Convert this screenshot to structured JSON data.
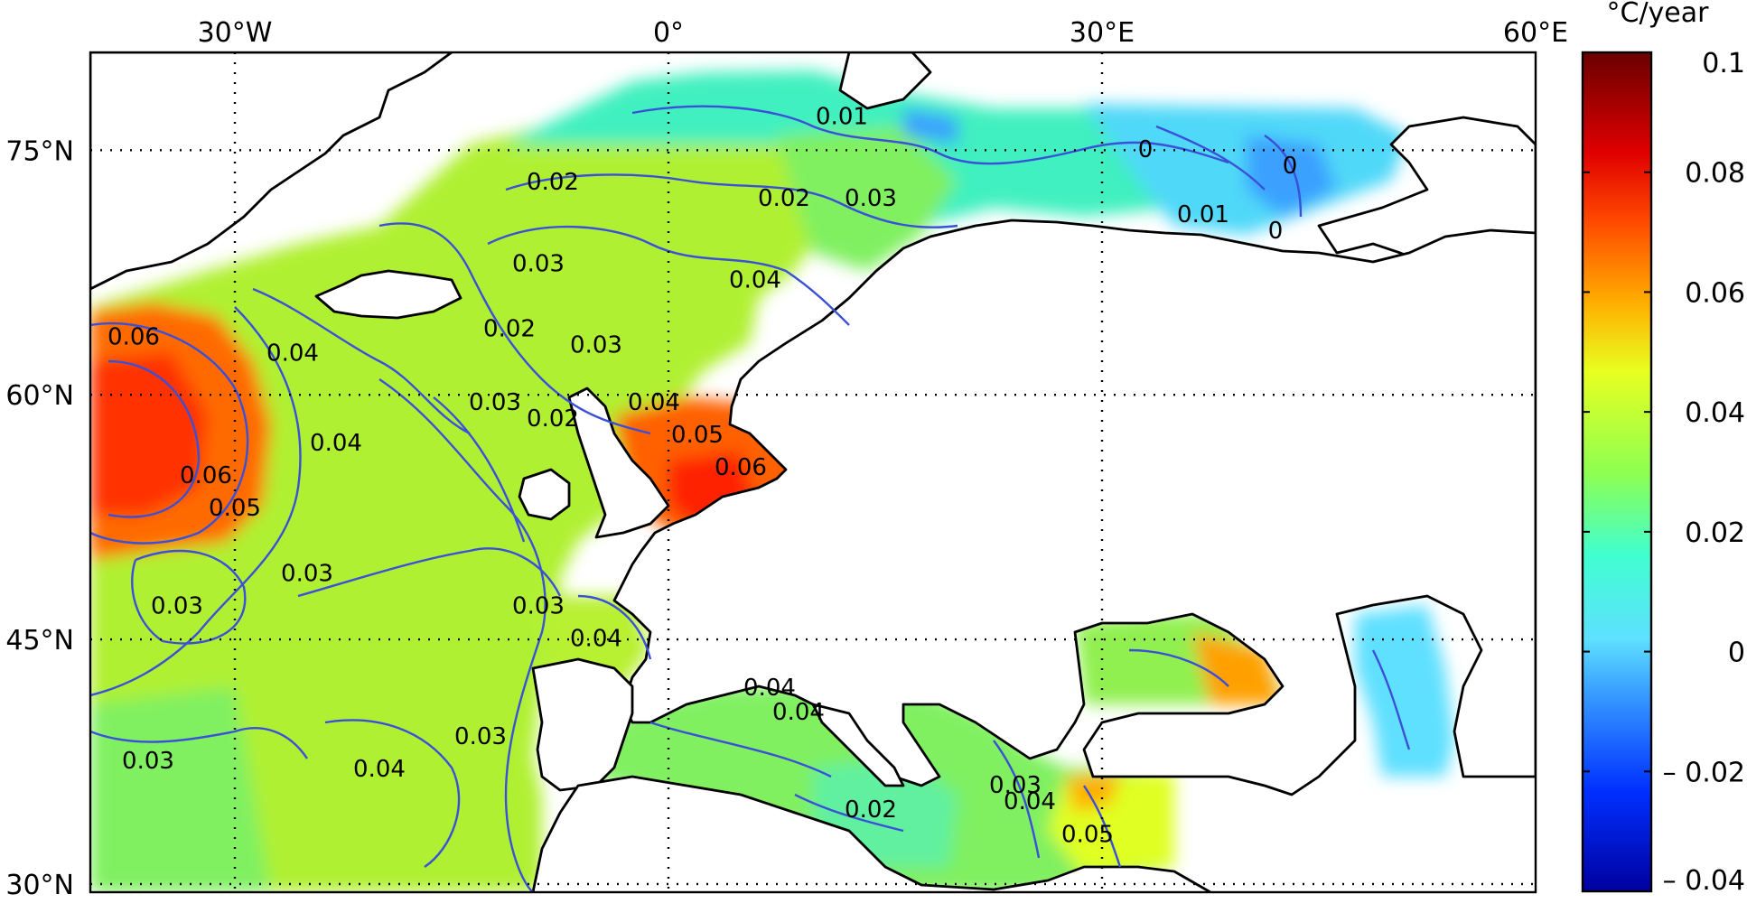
{
  "map": {
    "lon_range": [
      -40,
      60
    ],
    "lat_range": [
      29.5,
      81
    ],
    "lon_ticks": [
      {
        "lon": -30,
        "label": "30°W"
      },
      {
        "lon": 0,
        "label": "0°"
      },
      {
        "lon": 30,
        "label": "30°E"
      },
      {
        "lon": 60,
        "label": "60°E"
      }
    ],
    "lat_ticks": [
      {
        "lat": 75,
        "label": "75°N"
      },
      {
        "lat": 60,
        "label": "60°N"
      },
      {
        "lat": 45,
        "label": "45°N"
      },
      {
        "lat": 30,
        "label": "30°N"
      }
    ],
    "grid": "dotted",
    "colors": {
      "land": "#ffffff",
      "coastline": "#000000",
      "contour": "#3a50d8",
      "grid": "#000000"
    }
  },
  "colorbar": {
    "unit": "°C/year",
    "min": -0.04,
    "max": 0.1,
    "ticks": [
      {
        "value": 0.1,
        "label": "0.1"
      },
      {
        "value": 0.08,
        "label": "0.08"
      },
      {
        "value": 0.06,
        "label": "0.06"
      },
      {
        "value": 0.04,
        "label": "0.04"
      },
      {
        "value": 0.02,
        "label": "0.02"
      },
      {
        "value": 0,
        "label": "0"
      },
      {
        "value": -0.02,
        "label": "– 0.02"
      },
      {
        "value": -0.04,
        "label": "– 0.04"
      }
    ],
    "colormap": "jet"
  },
  "contour_labels": [
    {
      "text": "0.01",
      "lon": 12,
      "lat": 77
    },
    {
      "text": "0.02",
      "lon": -8,
      "lat": 73
    },
    {
      "text": "0.02",
      "lon": 8,
      "lat": 72
    },
    {
      "text": "0.03",
      "lon": 14,
      "lat": 72
    },
    {
      "text": "0",
      "lon": 33,
      "lat": 75
    },
    {
      "text": "0",
      "lon": 43,
      "lat": 74
    },
    {
      "text": "0.01",
      "lon": 37,
      "lat": 71
    },
    {
      "text": "0",
      "lon": 42,
      "lat": 70
    },
    {
      "text": "0.03",
      "lon": -9,
      "lat": 68
    },
    {
      "text": "0.04",
      "lon": 6,
      "lat": 67
    },
    {
      "text": "0.02",
      "lon": -11,
      "lat": 64
    },
    {
      "text": "0.03",
      "lon": -5,
      "lat": 63
    },
    {
      "text": "0.04",
      "lon": -26,
      "lat": 62.5
    },
    {
      "text": "0.06",
      "lon": -37,
      "lat": 63.5
    },
    {
      "text": "0.03",
      "lon": -12,
      "lat": 59.5
    },
    {
      "text": "0.04",
      "lon": -23,
      "lat": 57
    },
    {
      "text": "0.06",
      "lon": -32,
      "lat": 55
    },
    {
      "text": "0.05",
      "lon": -30,
      "lat": 53
    },
    {
      "text": "0.02",
      "lon": -8,
      "lat": 58.5
    },
    {
      "text": "0.04",
      "lon": -1,
      "lat": 59.5
    },
    {
      "text": "0.05",
      "lon": 2,
      "lat": 57.5
    },
    {
      "text": "0.06",
      "lon": 5,
      "lat": 55.5
    },
    {
      "text": "0.03",
      "lon": -34,
      "lat": 47
    },
    {
      "text": "0.03",
      "lon": -25,
      "lat": 49
    },
    {
      "text": "0.03",
      "lon": -9,
      "lat": 47
    },
    {
      "text": "0.04",
      "lon": -5,
      "lat": 45
    },
    {
      "text": "0.03",
      "lon": -36,
      "lat": 37.5
    },
    {
      "text": "0.04",
      "lon": -20,
      "lat": 37
    },
    {
      "text": "0.03",
      "lon": -13,
      "lat": 39
    },
    {
      "text": "0.04",
      "lon": 7,
      "lat": 42
    },
    {
      "text": "0.04",
      "lon": 9,
      "lat": 40.5
    },
    {
      "text": "0.02",
      "lon": 14,
      "lat": 34.5
    },
    {
      "text": "0.03",
      "lon": 24,
      "lat": 36
    },
    {
      "text": "0.04",
      "lon": 25,
      "lat": 35
    },
    {
      "text": "0.05",
      "lon": 29,
      "lat": 33
    }
  ]
}
